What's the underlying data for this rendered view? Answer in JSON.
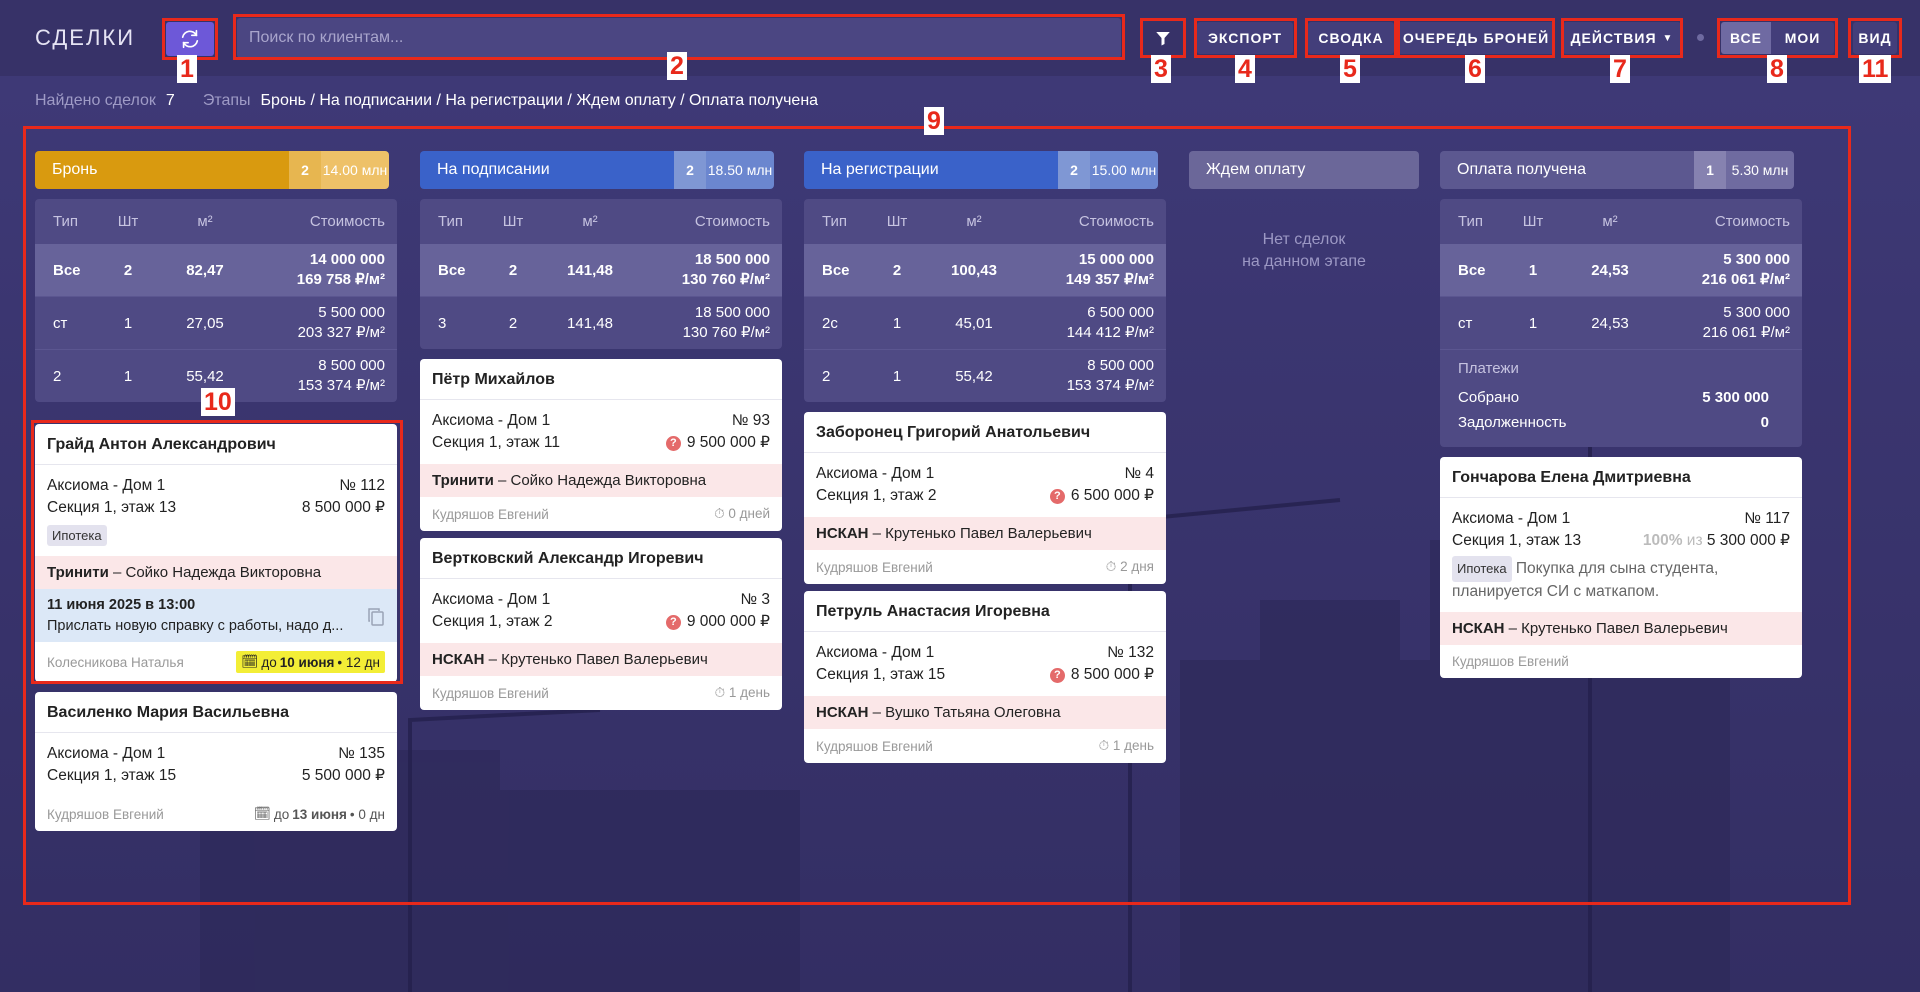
{
  "header": {
    "title": "СДЕЛКИ",
    "search_placeholder": "Поиск по клиентам...",
    "export_label": "ЭКСПОРТ",
    "summary_label": "СВОДКА",
    "queue_label": "ОЧЕРЕДЬ БРОНЕЙ",
    "actions_label": "ДЕЙСТВИЯ",
    "all_label": "ВСЕ",
    "mine_label": "МОИ",
    "view_label": "ВИД"
  },
  "subbar": {
    "found_label": "Найдено сделок",
    "found_value": "7",
    "stages_label": "Этапы",
    "stages_value": "Бронь / На подписании / На регистрации / Ждем оплату / Оплата получена"
  },
  "stats_headers": {
    "type": "Тип",
    "qty": "Шт",
    "area": "м²",
    "cost": "Стоимость"
  },
  "colors": {
    "bron": "#d99a0f",
    "podpis": "#3a62c9",
    "reg": "#3a62c9",
    "wait": "#6b6799",
    "paid": "#5c5890",
    "highlight": "#f3ee36",
    "accent": "#6d58d8",
    "annotation": "#e8291b"
  },
  "columns": [
    {
      "name": "Бронь",
      "count": "2",
      "sum": "14.00 млн",
      "stats": [
        {
          "type": "Все",
          "qty": "2",
          "area": "82,47",
          "cost": "14 000 000",
          "per": "169 758 ₽/м²"
        },
        {
          "type": "ст",
          "qty": "1",
          "area": "27,05",
          "cost": "5 500 000",
          "per": "203 327 ₽/м²"
        },
        {
          "type": "2",
          "qty": "1",
          "area": "55,42",
          "cost": "8 500 000",
          "per": "153 374 ₽/м²"
        }
      ],
      "cards": [
        {
          "name": "Грайд Антон Александрович",
          "project": "Аксиома - Дом 1",
          "num": "№ 112",
          "section": "Секция 1, этаж 13",
          "price": "8 500 000 ₽",
          "tag": "Ипотека",
          "agency": "Тринити",
          "agent": " – Сойко Надежда Викторовна",
          "task_title": "11 июня 2025 в 13:00",
          "task_text": "Прислать новую справку с работы, надо д...",
          "manager": "Колесникова Наталья",
          "due_pre": "до",
          "due_date": "10 июня",
          "due_post": "• 12 дн"
        },
        {
          "name": "Василенко Мария Васильевна",
          "project": "Аксиома - Дом 1",
          "num": "№ 135",
          "section": "Секция 1, этаж 15",
          "price": "5 500 000 ₽",
          "manager": "Кудряшов Евгений",
          "due_pre": "до",
          "due_date": "13 июня",
          "due_post": "• 0 дн"
        }
      ]
    },
    {
      "name": "На подписании",
      "count": "2",
      "sum": "18.50 млн",
      "stats": [
        {
          "type": "Все",
          "qty": "2",
          "area": "141,48",
          "cost": "18 500 000",
          "per": "130 760 ₽/м²"
        },
        {
          "type": "3",
          "qty": "2",
          "area": "141,48",
          "cost": "18 500 000",
          "per": "130 760 ₽/м²"
        }
      ],
      "cards": [
        {
          "name": "Пётр Михайлов",
          "project": "Аксиома - Дом 1",
          "num": "№ 93",
          "section": "Секция 1, этаж 11",
          "price": "9 500 000 ₽",
          "agency": "Тринити",
          "agent": " – Сойко Надежда Викторовна",
          "manager": "Кудряшов Евгений",
          "time": "0 дней"
        },
        {
          "name": "Вертковский Александр Игоревич",
          "project": "Аксиома - Дом 1",
          "num": "№ 3",
          "section": "Секция 1, этаж 2",
          "price": "9 000 000 ₽",
          "agency": "НСКАН",
          "agent": " – Крутенько Павел Валерьевич",
          "manager": "Кудряшов Евгений",
          "time": "1 день"
        }
      ]
    },
    {
      "name": "На регистрации",
      "count": "2",
      "sum": "15.00 млн",
      "stats": [
        {
          "type": "Все",
          "qty": "2",
          "area": "100,43",
          "cost": "15 000 000",
          "per": "149 357 ₽/м²"
        },
        {
          "type": "2с",
          "qty": "1",
          "area": "45,01",
          "cost": "6 500 000",
          "per": "144 412 ₽/м²"
        },
        {
          "type": "2",
          "qty": "1",
          "area": "55,42",
          "cost": "8 500 000",
          "per": "153 374 ₽/м²"
        }
      ],
      "cards": [
        {
          "name": "Заборонец Григорий Анатольевич",
          "project": "Аксиома - Дом 1",
          "num": "№ 4",
          "section": "Секция 1, этаж 2",
          "price": "6 500 000 ₽",
          "agency": "НСКАН",
          "agent": " – Крутенько Павел Валерьевич",
          "manager": "Кудряшов Евгений",
          "time": "2 дня"
        },
        {
          "name": "Петруль Анастасия Игоревна",
          "project": "Аксиома - Дом 1",
          "num": "№ 132",
          "section": "Секция 1, этаж 15",
          "price": "8 500 000 ₽",
          "agency": "НСКАН",
          "agent": " – Вушко Татьяна Олеговна",
          "manager": "Кудряшов Евгений",
          "time": "1 день"
        }
      ]
    },
    {
      "name": "Ждем оплату",
      "empty_line1": "Нет сделок",
      "empty_line2": "на данном этапе"
    },
    {
      "name": "Оплата получена",
      "count": "1",
      "sum": "5.30 млн",
      "stats": [
        {
          "type": "Все",
          "qty": "1",
          "area": "24,53",
          "cost": "5 300 000",
          "per": "216 061 ₽/м²"
        },
        {
          "type": "ст",
          "qty": "1",
          "area": "24,53",
          "cost": "5 300 000",
          "per": "216 061 ₽/м²"
        }
      ],
      "payments": {
        "title": "Платежи",
        "collected_label": "Собрано",
        "collected": "5 300 000",
        "debt_label": "Задолженность",
        "debt": "0"
      },
      "cards": [
        {
          "name": "Гончарова Елена Дмитриевна",
          "project": "Аксиома - Дом 1",
          "num": "№ 117",
          "section": "Секция 1, этаж 13",
          "pct": "100%",
          "of": "из",
          "price": "5 300 000 ₽",
          "tag": "Ипотека",
          "note": " Покупка для сына студента, планируется СИ с маткапом.",
          "agency": "НСКАН",
          "agent": " – Крутенько Павел Валерьевич",
          "manager": "Кудряшов Евгений"
        }
      ]
    }
  ],
  "annotations": [
    "1",
    "2",
    "3",
    "4",
    "5",
    "6",
    "7",
    "8",
    "9",
    "10",
    "11"
  ]
}
